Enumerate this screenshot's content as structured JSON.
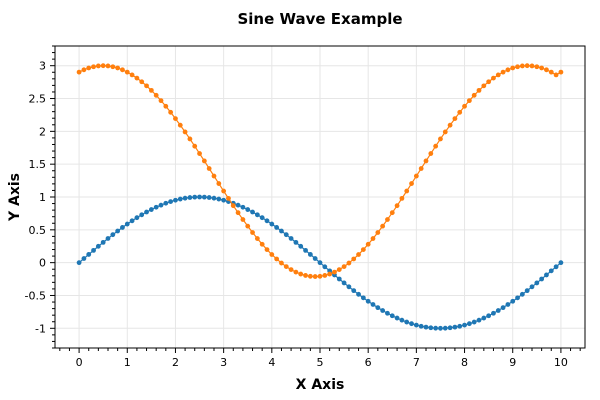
{
  "chart_data": {
    "type": "scatter",
    "title": "Sine Wave Example",
    "xlabel": "X Axis",
    "ylabel": "Y Axis",
    "xlim": [
      -0.5,
      10.5
    ],
    "ylim": [
      -1.3,
      3.3
    ],
    "x_ticks": [
      0,
      1,
      2,
      3,
      4,
      5,
      6,
      7,
      8,
      9,
      10
    ],
    "x_tick_labels": [
      "0",
      "1",
      "2",
      "3",
      "4",
      "5",
      "6",
      "7",
      "8",
      "9",
      "10"
    ],
    "y_ticks": [
      -1,
      -0.5,
      0,
      0.5,
      1,
      1.5,
      2,
      2.5,
      3
    ],
    "y_tick_labels": [
      "-1",
      "-0.5",
      "0",
      "0.5",
      "1",
      "1.5",
      "2",
      "2.5",
      "3"
    ],
    "grid": true,
    "legend": "none",
    "marker": "circle",
    "x_step": 0.1,
    "series": [
      {
        "color": "#1f77b4",
        "x": [
          0,
          0.1,
          0.2,
          0.3,
          0.4,
          0.5,
          0.6,
          0.7,
          0.8,
          0.9,
          1,
          1.1,
          1.2,
          1.3,
          1.4,
          1.5,
          1.6,
          1.7,
          1.8,
          1.9,
          2,
          2.1,
          2.2,
          2.3,
          2.4,
          2.5,
          2.6,
          2.7,
          2.8,
          2.9,
          3,
          3.1,
          3.2,
          3.3,
          3.4,
          3.5,
          3.6,
          3.7,
          3.8,
          3.9,
          4,
          4.1,
          4.2,
          4.3,
          4.4,
          4.5,
          4.6,
          4.7,
          4.8,
          4.9,
          5,
          5.1,
          5.2,
          5.3,
          5.4,
          5.5,
          5.6,
          5.7,
          5.8,
          5.9,
          6,
          6.1,
          6.2,
          6.3,
          6.4,
          6.5,
          6.6,
          6.7,
          6.8,
          6.9,
          7,
          7.1,
          7.2,
          7.3,
          7.4,
          7.5,
          7.6,
          7.7,
          7.8,
          7.9,
          8,
          8.1,
          8.2,
          8.3,
          8.4,
          8.5,
          8.6,
          8.7,
          8.8,
          8.9,
          9,
          9.1,
          9.2,
          9.3,
          9.4,
          9.5,
          9.6,
          9.7,
          9.8,
          9.9,
          10
        ],
        "y": [
          0,
          0.063,
          0.125,
          0.187,
          0.249,
          0.309,
          0.368,
          0.426,
          0.482,
          0.536,
          0.588,
          0.637,
          0.685,
          0.729,
          0.771,
          0.809,
          0.844,
          0.876,
          0.905,
          0.93,
          0.951,
          0.969,
          0.982,
          0.992,
          0.998,
          1,
          0.998,
          0.992,
          0.982,
          0.969,
          0.951,
          0.93,
          0.905,
          0.876,
          0.844,
          0.809,
          0.771,
          0.729,
          0.685,
          0.637,
          0.588,
          0.536,
          0.482,
          0.426,
          0.368,
          0.309,
          0.249,
          0.187,
          0.125,
          0.063,
          0,
          -0.063,
          -0.125,
          -0.187,
          -0.249,
          -0.309,
          -0.368,
          -0.426,
          -0.482,
          -0.536,
          -0.588,
          -0.637,
          -0.685,
          -0.729,
          -0.771,
          -0.809,
          -0.844,
          -0.876,
          -0.905,
          -0.93,
          -0.951,
          -0.969,
          -0.982,
          -0.992,
          -0.998,
          -1,
          -0.998,
          -0.992,
          -0.982,
          -0.969,
          -0.951,
          -0.93,
          -0.905,
          -0.876,
          -0.844,
          -0.809,
          -0.771,
          -0.729,
          -0.685,
          -0.637,
          -0.588,
          -0.536,
          -0.482,
          -0.426,
          -0.368,
          -0.309,
          -0.249,
          -0.187,
          -0.125,
          -0.063,
          0
        ]
      },
      {
        "color": "#ff7f0e",
        "x": [
          0,
          0.1,
          0.2,
          0.3,
          0.4,
          0.5,
          0.6,
          0.7,
          0.8,
          0.9,
          1,
          1.1,
          1.2,
          1.3,
          1.4,
          1.5,
          1.6,
          1.7,
          1.8,
          1.9,
          2,
          2.1,
          2.2,
          2.3,
          2.4,
          2.5,
          2.6,
          2.7,
          2.8,
          2.9,
          3,
          3.1,
          3.2,
          3.3,
          3.4,
          3.5,
          3.6,
          3.7,
          3.8,
          3.9,
          4,
          4.1,
          4.2,
          4.3,
          4.4,
          4.5,
          4.6,
          4.7,
          4.8,
          4.9,
          5,
          5.1,
          5.2,
          5.3,
          5.4,
          5.5,
          5.6,
          5.7,
          5.8,
          5.9,
          6,
          6.1,
          6.2,
          6.3,
          6.4,
          6.5,
          6.6,
          6.7,
          6.8,
          6.9,
          7,
          7.1,
          7.2,
          7.3,
          7.4,
          7.5,
          7.6,
          7.7,
          7.8,
          7.9,
          8,
          8.1,
          8.2,
          8.3,
          8.4,
          8.5,
          8.6,
          8.7,
          8.8,
          8.9,
          9,
          9.1,
          9.2,
          9.3,
          9.4,
          9.5,
          9.6,
          9.7,
          9.8,
          9.9,
          10
        ],
        "y": [
          2.902,
          2.937,
          2.965,
          2.984,
          2.996,
          3,
          2.996,
          2.984,
          2.965,
          2.937,
          2.902,
          2.86,
          2.811,
          2.755,
          2.693,
          2.624,
          2.549,
          2.468,
          2.382,
          2.29,
          2.194,
          2.094,
          1.991,
          1.884,
          1.774,
          1.662,
          1.549,
          1.434,
          1.319,
          1.205,
          1.091,
          0.979,
          0.868,
          0.761,
          0.657,
          0.556,
          0.459,
          0.367,
          0.28,
          0.199,
          0.124,
          0.056,
          -0.006,
          -0.06,
          -0.106,
          -0.144,
          -0.174,
          -0.195,
          -0.208,
          -0.212,
          -0.208,
          -0.195,
          -0.174,
          -0.144,
          -0.106,
          -0.06,
          -0.006,
          0.056,
          0.124,
          0.199,
          0.28,
          0.367,
          0.459,
          0.556,
          0.657,
          0.761,
          0.868,
          0.979,
          1.091,
          1.205,
          1.319,
          1.434,
          1.549,
          1.662,
          1.774,
          1.884,
          1.991,
          2.094,
          2.194,
          2.29,
          2.382,
          2.468,
          2.549,
          2.624,
          2.693,
          2.755,
          2.811,
          2.86,
          2.902,
          2.937,
          2.965,
          2.984,
          2.996,
          3,
          2.996,
          2.984,
          2.965,
          2.937,
          2.902,
          2.86,
          2.902
        ]
      }
    ]
  }
}
